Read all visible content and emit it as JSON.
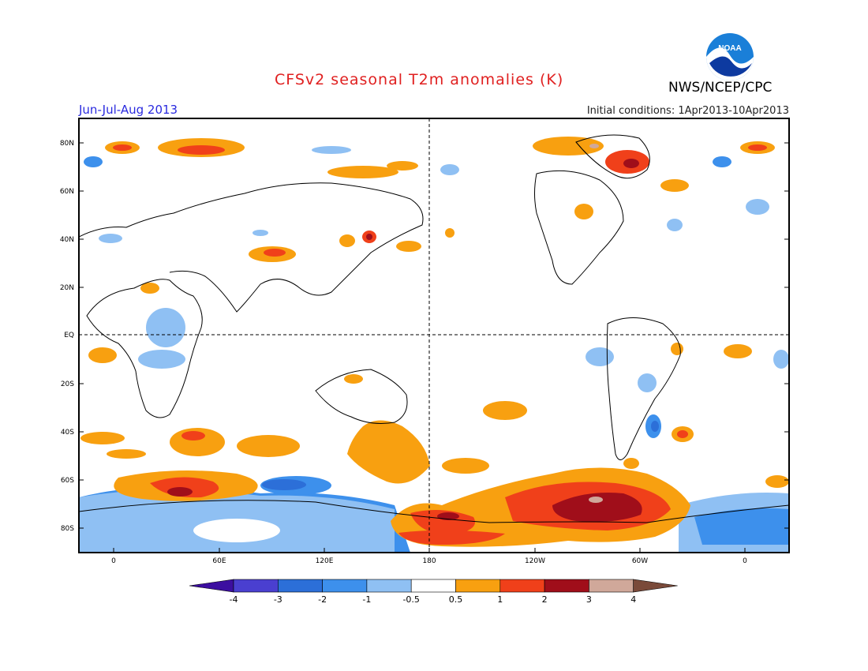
{
  "header": {
    "title": "CFSv2 seasonal T2m anomalies (K)",
    "agency": "NWS/NCEP/CPC",
    "season": "Jun-Jul-Aug 2013",
    "initial_conditions": "Initial conditions: 1Apr2013-10Apr2013",
    "logo_text": "NOAA"
  },
  "axes": {
    "lat_labels": [
      "80N",
      "60N",
      "40N",
      "20N",
      "EQ",
      "20S",
      "40S",
      "60S",
      "80S"
    ],
    "lon_labels": [
      "0",
      "60E",
      "120E",
      "180",
      "120W",
      "60W",
      "0"
    ]
  },
  "colorbar": {
    "tick_labels": [
      "-4",
      "-3",
      "-2",
      "-1",
      "-0.5",
      "0.5",
      "1",
      "2",
      "3",
      "4"
    ],
    "colors": [
      "#3c0ea0",
      "#4a3fd0",
      "#2c6fd8",
      "#3d90ec",
      "#8fc0f3",
      "#ffffff",
      "#f8a010",
      "#f0401a",
      "#a00e1a",
      "#d0a89a",
      "#7a4a3a"
    ]
  }
}
